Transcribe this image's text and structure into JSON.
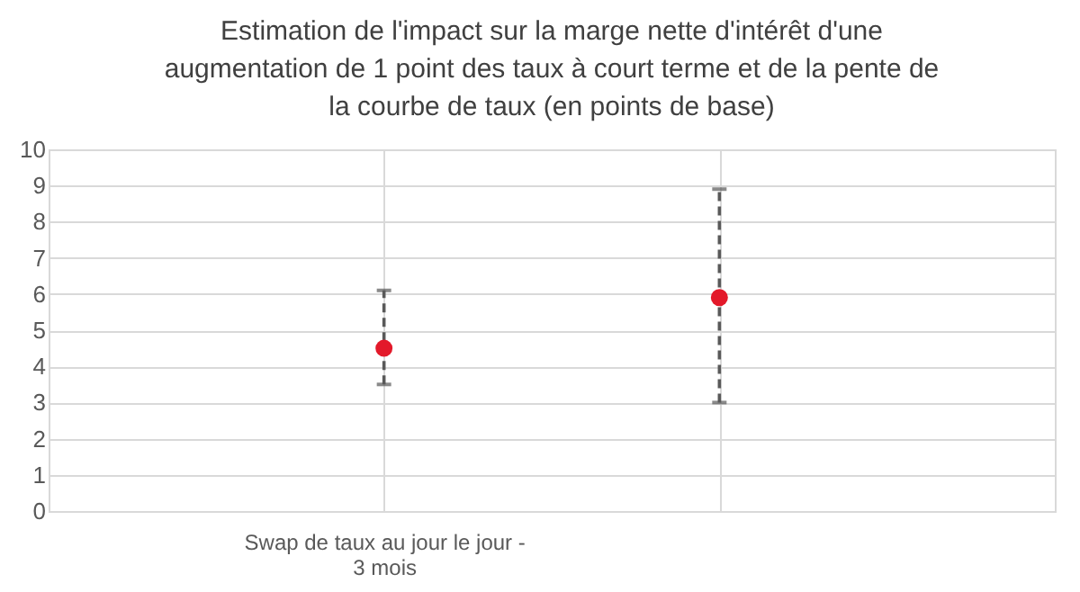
{
  "chart_data": {
    "type": "scatter",
    "title": "Estimation de l'impact sur la marge nette d'intérêt d'une augmentation de 1 point des taux à court terme et de la pente de la courbe de taux (en points de base)",
    "categories": [
      "Swap de taux au jour le jour - 3 mois",
      null
    ],
    "series": [
      {
        "color": "#e3192a",
        "values": [
          4.5,
          5.9
        ],
        "errors": [
          [
            3.5,
            6.1
          ],
          [
            3.0,
            8.9
          ]
        ]
      }
    ],
    "ylim": [
      0,
      10
    ],
    "yticks": [
      0,
      1,
      2,
      3,
      4,
      5,
      6,
      7,
      8,
      9,
      10
    ],
    "grid": true,
    "marker": "circle"
  }
}
